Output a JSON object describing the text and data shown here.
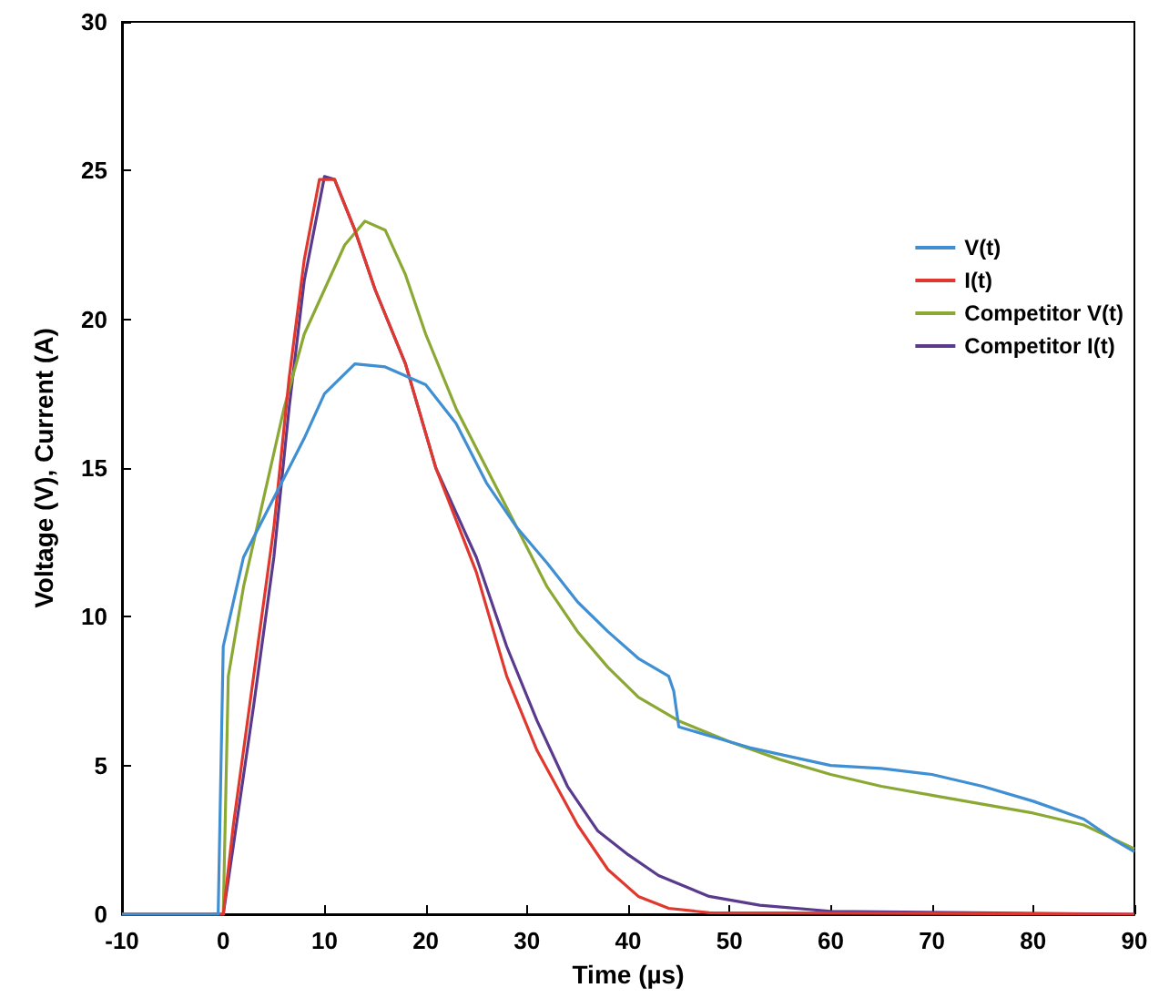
{
  "chart_data": {
    "type": "line",
    "xlabel": "Time (µs)",
    "ylabel": "Voltage (V), Current (A)",
    "xlim": [
      -10,
      90
    ],
    "xticks": [
      -10,
      0,
      10,
      20,
      30,
      40,
      50,
      60,
      70,
      80,
      90
    ],
    "ylim": [
      0,
      30
    ],
    "yticks": [
      0,
      5,
      10,
      15,
      20,
      25,
      30
    ],
    "grid": false,
    "legend": "right",
    "marker": "none",
    "line_style": "solid",
    "series": [
      {
        "name": "V(t)",
        "color": "#3f8fd2",
        "x": [
          -10,
          -1,
          -0.5,
          0,
          2,
          5,
          8,
          10,
          13,
          16,
          20,
          23,
          26,
          29,
          32,
          35,
          38,
          41,
          44,
          44.5,
          45,
          48,
          52,
          56,
          60,
          65,
          70,
          75,
          80,
          85,
          88,
          90
        ],
        "values": [
          0,
          0,
          0,
          9,
          12,
          14,
          16,
          17.5,
          18.5,
          18.4,
          17.8,
          16.5,
          14.5,
          13,
          11.8,
          10.5,
          9.5,
          8.6,
          8,
          7.5,
          6.3,
          6,
          5.6,
          5.3,
          5,
          4.9,
          4.7,
          4.3,
          3.8,
          3.2,
          2.5,
          2.1
        ]
      },
      {
        "name": "I(t)",
        "color": "#e0382e",
        "x": [
          -10,
          0,
          1,
          3,
          5,
          6.5,
          8,
          9.5,
          11,
          13,
          15,
          18,
          21,
          25,
          28,
          31,
          35,
          38,
          41,
          44,
          48,
          90
        ],
        "values": [
          0,
          0,
          3,
          8,
          13,
          18,
          22,
          24.7,
          24.7,
          23,
          21,
          18.5,
          15,
          11.5,
          8,
          5.5,
          3,
          1.5,
          0.6,
          0.2,
          0.05,
          0
        ]
      },
      {
        "name": "Competitor V(t)",
        "color": "#8aa833",
        "x": [
          -10,
          0,
          0.5,
          2,
          4,
          6,
          8,
          10,
          12,
          14,
          16,
          18,
          20,
          23,
          26,
          29,
          32,
          35,
          38,
          41,
          45,
          50,
          55,
          60,
          65,
          70,
          75,
          80,
          85,
          90
        ],
        "values": [
          0,
          0,
          8,
          11,
          14,
          17,
          19.5,
          21,
          22.5,
          23.3,
          23,
          21.5,
          19.5,
          17,
          15,
          13,
          11,
          9.5,
          8.3,
          7.3,
          6.5,
          5.8,
          5.2,
          4.7,
          4.3,
          4,
          3.7,
          3.4,
          3,
          2.2
        ]
      },
      {
        "name": "Competitor I(t)",
        "color": "#5a3a8c",
        "x": [
          -10,
          0,
          1,
          3,
          5,
          6.5,
          8,
          10,
          11,
          13,
          15,
          18,
          21,
          25,
          28,
          31,
          34,
          37,
          40,
          43,
          48,
          53,
          60,
          90
        ],
        "values": [
          0,
          0,
          2.3,
          7,
          12,
          17,
          21.3,
          24.8,
          24.7,
          23,
          21,
          18.5,
          15,
          12,
          9,
          6.5,
          4.3,
          2.8,
          2,
          1.3,
          0.6,
          0.3,
          0.1,
          0
        ]
      }
    ]
  }
}
